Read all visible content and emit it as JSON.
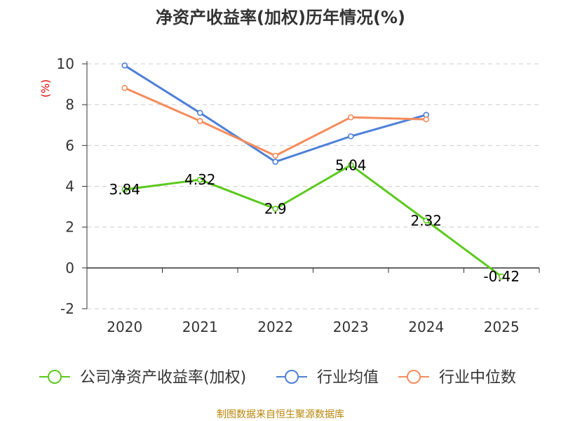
{
  "chart_data": {
    "type": "line",
    "title": "净资产收益率(加权)历年情况(%)",
    "ylabel": "(%)",
    "xlabel": "",
    "categories": [
      "2020",
      "2021",
      "2022",
      "2023",
      "2024",
      "2025"
    ],
    "ylim": [
      -2,
      10
    ],
    "yticks": [
      -2,
      0,
      2,
      4,
      6,
      8,
      10
    ],
    "grid": true,
    "legend_position": "bottom",
    "series": [
      {
        "name": "公司净资产收益率(加权)",
        "color": "#5cc91e",
        "values": [
          3.84,
          4.32,
          2.9,
          5.04,
          2.32,
          -0.42
        ],
        "data_labels": [
          "3.84",
          "4.32",
          "2.9",
          "5.04",
          "2.32",
          "-0.42"
        ]
      },
      {
        "name": "行业均值",
        "color": "#4e80d8",
        "values": [
          9.92,
          7.6,
          5.2,
          6.45,
          7.5,
          null
        ]
      },
      {
        "name": "行业中位数",
        "color": "#f58c5c",
        "values": [
          8.82,
          7.2,
          5.5,
          7.38,
          7.28,
          null
        ]
      }
    ],
    "source": "制图数据来自恒生聚源数据库"
  }
}
